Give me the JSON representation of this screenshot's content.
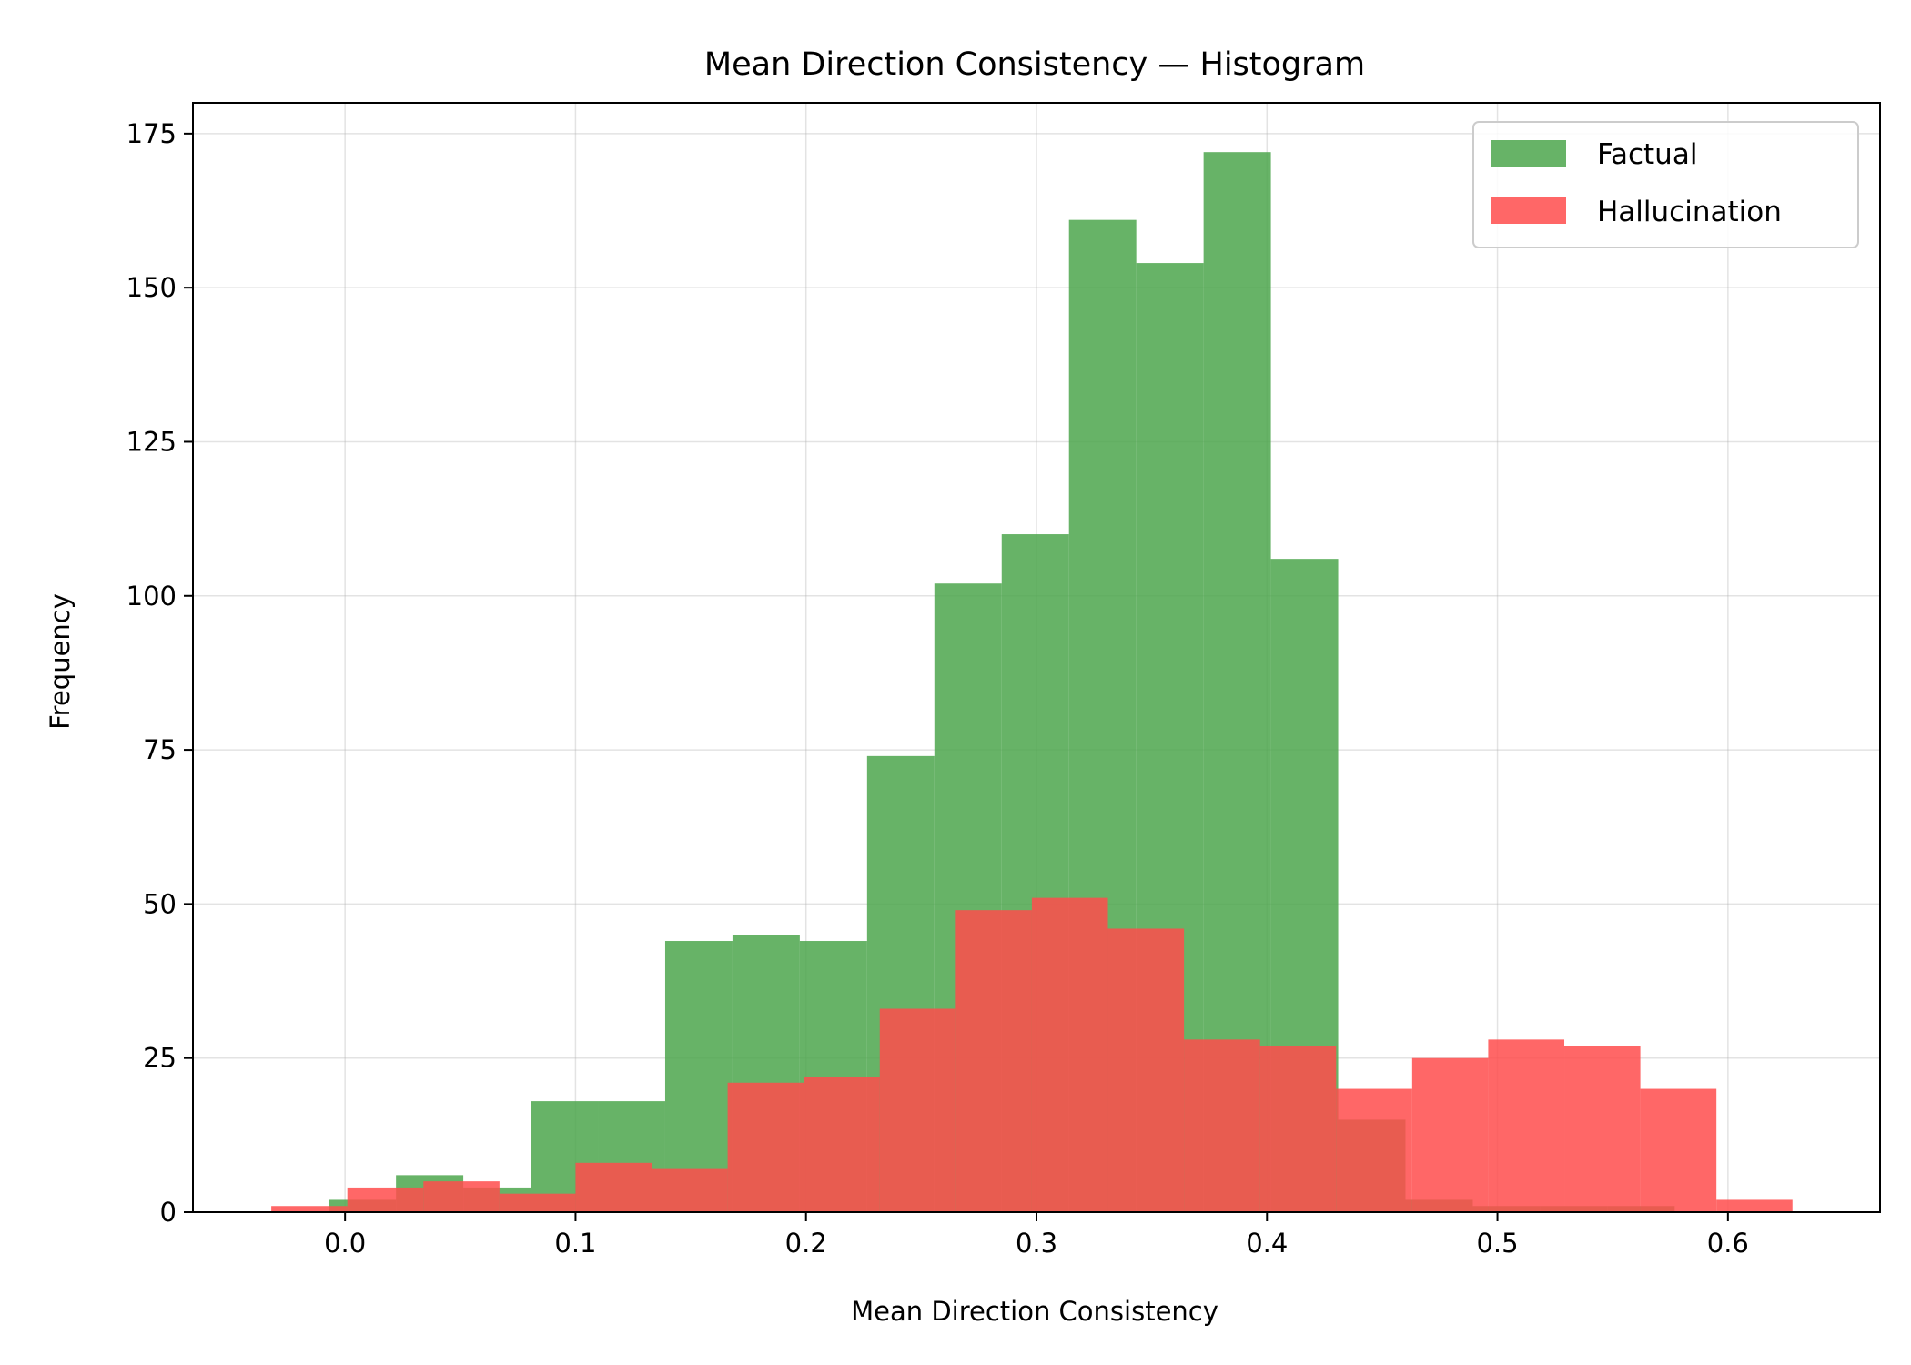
{
  "chart_data": {
    "type": "bar",
    "title": "Mean Direction Consistency — Histogram",
    "xlabel": "Mean Direction Consistency",
    "ylabel": "Frequency",
    "xlim": [
      -0.066,
      0.666
    ],
    "ylim": [
      0,
      180
    ],
    "x_ticks": [
      0.0,
      0.1,
      0.2,
      0.3,
      0.4,
      0.5,
      0.6
    ],
    "x_tick_labels": [
      "0.0",
      "0.1",
      "0.2",
      "0.3",
      "0.4",
      "0.5",
      "0.6"
    ],
    "y_ticks": [
      0,
      25,
      50,
      75,
      100,
      125,
      150,
      175
    ],
    "y_tick_labels": [
      "0",
      "25",
      "50",
      "75",
      "100",
      "125",
      "150",
      "175"
    ],
    "grid": true,
    "legend_position": "top-right",
    "series": [
      {
        "name": "Factual",
        "color": "#4ca64c",
        "opacity": 0.85,
        "bin_edges": [
          -0.007,
          0.0221,
          0.0513,
          0.0805,
          0.1097,
          0.1389,
          0.1681,
          0.1973,
          0.2265,
          0.2557,
          0.2849,
          0.3141,
          0.3433,
          0.3725,
          0.4017,
          0.4309,
          0.4601,
          0.4893,
          0.5185,
          0.5477,
          0.5769
        ],
        "values": [
          2,
          6,
          4,
          18,
          18,
          44,
          45,
          44,
          74,
          102,
          110,
          161,
          154,
          172,
          106,
          15,
          2,
          1,
          1,
          1
        ]
      },
      {
        "name": "Hallucination",
        "color": "#ff4c4c",
        "opacity": 0.85,
        "bin_edges": [
          -0.032,
          0.001,
          0.034,
          0.067,
          0.1,
          0.133,
          0.166,
          0.199,
          0.232,
          0.265,
          0.298,
          0.331,
          0.364,
          0.397,
          0.43,
          0.463,
          0.496,
          0.529,
          0.562,
          0.595,
          0.628
        ],
        "values": [
          1,
          4,
          5,
          3,
          8,
          7,
          21,
          22,
          33,
          49,
          51,
          46,
          28,
          27,
          20,
          25,
          28,
          27,
          20,
          2
        ]
      }
    ]
  }
}
